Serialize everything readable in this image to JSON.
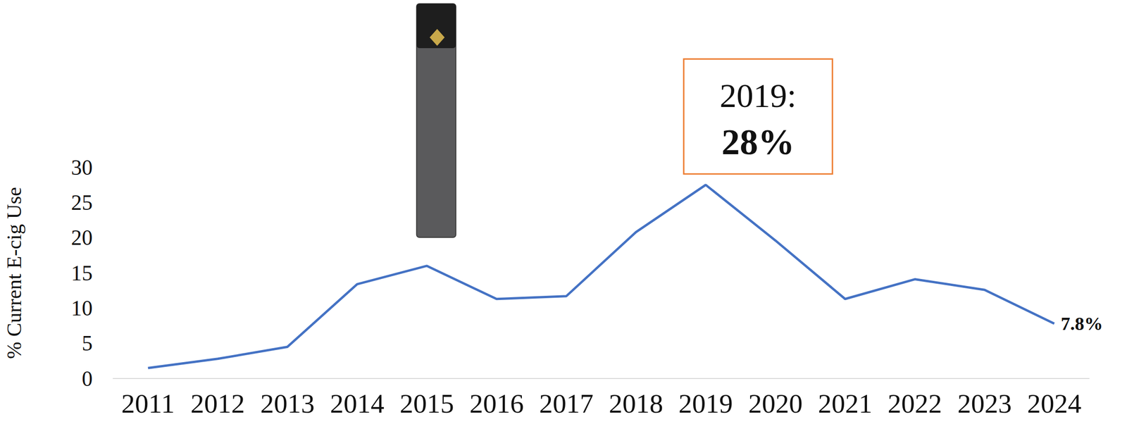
{
  "chart_data": {
    "type": "line",
    "y_label": "% Current E-cig Use",
    "categories": [
      "2011",
      "2012",
      "2013",
      "2014",
      "2015",
      "2016",
      "2017",
      "2018",
      "2019",
      "2020",
      "2021",
      "2022",
      "2023",
      "2024"
    ],
    "values": [
      1.5,
      2.8,
      4.5,
      13.4,
      16.0,
      11.3,
      11.7,
      20.8,
      27.5,
      19.6,
      11.3,
      14.1,
      12.6,
      7.8
    ],
    "value_labels": [
      null,
      null,
      null,
      null,
      null,
      null,
      null,
      null,
      null,
      null,
      null,
      null,
      null,
      "7.8%"
    ],
    "color": "#4472c4",
    "ylim": [
      0,
      30
    ],
    "yticks": [
      0,
      5,
      10,
      15,
      20,
      25,
      30
    ],
    "grid": false,
    "annotations": [
      {
        "x": "2019",
        "value": 28,
        "text": "2019:",
        "value_label": "28%"
      }
    ]
  }
}
